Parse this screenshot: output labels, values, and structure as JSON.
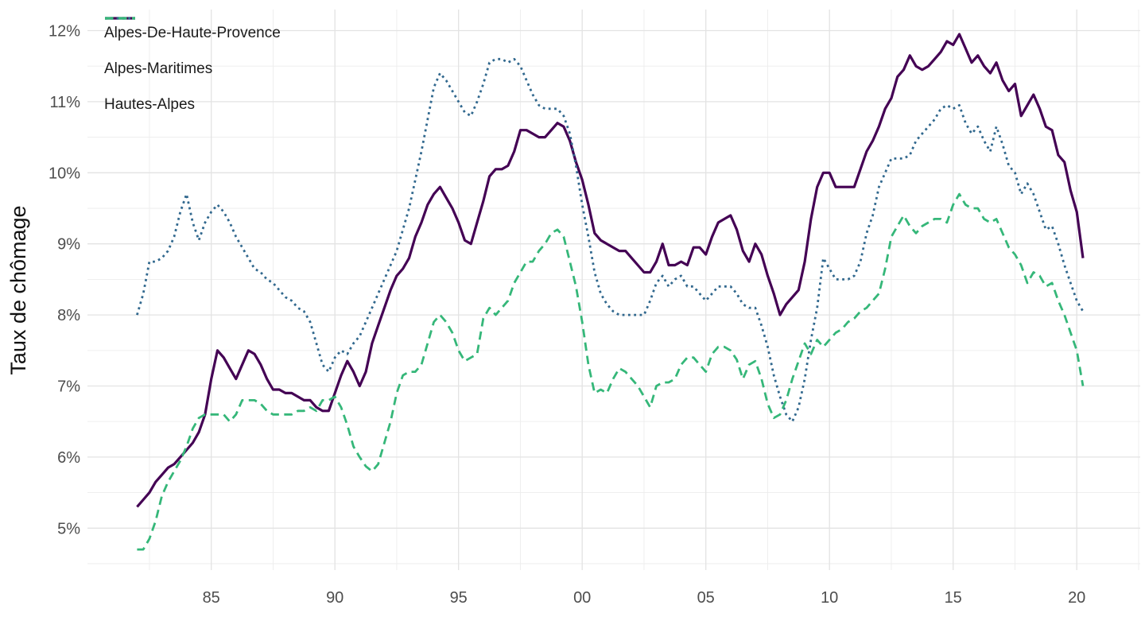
{
  "figure": {
    "y_axis_title": "Taux de chômage",
    "tick_label_color": "#4d4d4d",
    "axis_title_color": "#111111",
    "grid_major_color": "#e3e3e3",
    "grid_minor_color": "#ededed",
    "background": "#ffffff"
  },
  "chart_data": {
    "type": "line",
    "title": "",
    "xlabel": "",
    "ylabel": "Taux de chômage",
    "x_unit": "year (quarterly unemployment rate, %)",
    "x_start": 1982.0,
    "x_step": 0.25,
    "x_end": 2020.25,
    "xlim": [
      1980.0,
      2022.6
    ],
    "ylim": [
      4.4,
      12.3
    ],
    "grid": true,
    "legend_position": "top-left-inside",
    "x_tick_years": [
      1985,
      1990,
      1995,
      2000,
      2005,
      2010,
      2015,
      2020
    ],
    "x_tick_labels": [
      "85",
      "90",
      "95",
      "00",
      "05",
      "10",
      "15",
      "20"
    ],
    "y_ticks": [
      5,
      6,
      7,
      8,
      9,
      10,
      11,
      12
    ],
    "y_tick_labels": [
      "5%",
      "6%",
      "7%",
      "8%",
      "9%",
      "10%",
      "11%",
      "12%"
    ],
    "series": [
      {
        "name": "Alpes-De-Haute-Provence",
        "color": "#440154",
        "linestyle": "solid",
        "values": [
          5.3,
          5.4,
          5.5,
          5.65,
          5.75,
          5.85,
          5.9,
          6.0,
          6.1,
          6.2,
          6.35,
          6.6,
          7.1,
          7.5,
          7.4,
          7.25,
          7.1,
          7.3,
          7.5,
          7.45,
          7.3,
          7.1,
          6.95,
          6.95,
          6.9,
          6.9,
          6.85,
          6.8,
          6.8,
          6.7,
          6.65,
          6.65,
          6.9,
          7.15,
          7.35,
          7.2,
          7.0,
          7.2,
          7.6,
          7.85,
          8.1,
          8.35,
          8.55,
          8.65,
          8.8,
          9.1,
          9.3,
          9.55,
          9.7,
          9.8,
          9.65,
          9.5,
          9.3,
          9.05,
          9.0,
          9.3,
          9.6,
          9.95,
          10.05,
          10.05,
          10.1,
          10.3,
          10.6,
          10.6,
          10.55,
          10.5,
          10.5,
          10.6,
          10.7,
          10.65,
          10.45,
          10.15,
          9.9,
          9.55,
          9.15,
          9.05,
          9.0,
          8.95,
          8.9,
          8.9,
          8.8,
          8.7,
          8.6,
          8.6,
          8.75,
          9.0,
          8.7,
          8.7,
          8.75,
          8.7,
          8.95,
          8.95,
          8.85,
          9.1,
          9.3,
          9.35,
          9.4,
          9.2,
          8.9,
          8.75,
          9.0,
          8.85,
          8.55,
          8.3,
          8.0,
          8.15,
          8.25,
          8.35,
          8.75,
          9.35,
          9.8,
          10.0,
          10.0,
          9.8,
          9.8,
          9.8,
          9.8,
          10.05,
          10.3,
          10.45,
          10.65,
          10.9,
          11.05,
          11.35,
          11.45,
          11.65,
          11.5,
          11.45,
          11.5,
          11.6,
          11.7,
          11.85,
          11.8,
          11.95,
          11.75,
          11.55,
          11.65,
          11.5,
          11.4,
          11.55,
          11.3,
          11.15,
          11.25,
          10.8,
          10.95,
          11.1,
          10.9,
          10.65,
          10.6,
          10.25,
          10.15,
          9.75,
          9.45,
          8.8
        ]
      },
      {
        "name": "Alpes-Maritimes",
        "color": "#31688e",
        "linestyle": "dotted",
        "values": [
          8.0,
          8.3,
          8.75,
          8.75,
          8.8,
          8.9,
          9.1,
          9.45,
          9.7,
          9.3,
          9.05,
          9.3,
          9.45,
          9.55,
          9.45,
          9.3,
          9.1,
          8.95,
          8.8,
          8.65,
          8.6,
          8.5,
          8.45,
          8.35,
          8.25,
          8.2,
          8.1,
          8.05,
          7.9,
          7.6,
          7.3,
          7.2,
          7.4,
          7.5,
          7.45,
          7.6,
          7.7,
          7.9,
          8.1,
          8.3,
          8.5,
          8.7,
          8.9,
          9.2,
          9.5,
          9.9,
          10.3,
          10.75,
          11.2,
          11.4,
          11.3,
          11.15,
          11.0,
          10.85,
          10.8,
          11.0,
          11.25,
          11.55,
          11.6,
          11.6,
          11.55,
          11.6,
          11.5,
          11.3,
          11.1,
          10.95,
          10.9,
          10.9,
          10.9,
          10.8,
          10.55,
          10.1,
          9.55,
          9.1,
          8.6,
          8.3,
          8.15,
          8.05,
          8.0,
          8.0,
          8.0,
          8.0,
          8.0,
          8.2,
          8.45,
          8.55,
          8.4,
          8.5,
          8.55,
          8.4,
          8.4,
          8.3,
          8.2,
          8.3,
          8.4,
          8.4,
          8.4,
          8.3,
          8.15,
          8.1,
          8.1,
          7.85,
          7.55,
          7.15,
          6.85,
          6.6,
          6.5,
          6.7,
          7.1,
          7.65,
          8.1,
          8.8,
          8.65,
          8.5,
          8.5,
          8.5,
          8.55,
          8.75,
          9.15,
          9.4,
          9.8,
          10.0,
          10.2,
          10.2,
          10.2,
          10.25,
          10.45,
          10.55,
          10.65,
          10.75,
          10.9,
          10.95,
          10.9,
          10.95,
          10.7,
          10.55,
          10.65,
          10.45,
          10.3,
          10.65,
          10.4,
          10.1,
          10.0,
          9.7,
          9.85,
          9.7,
          9.45,
          9.2,
          9.25,
          9.0,
          8.7,
          8.45,
          8.2,
          8.05
        ]
      },
      {
        "name": "Hautes-Alpes",
        "color": "#35b779",
        "linestyle": "dashed",
        "values": [
          4.7,
          4.7,
          4.85,
          5.1,
          5.45,
          5.65,
          5.8,
          5.95,
          6.15,
          6.4,
          6.55,
          6.6,
          6.6,
          6.6,
          6.6,
          6.5,
          6.6,
          6.8,
          6.8,
          6.8,
          6.75,
          6.65,
          6.6,
          6.6,
          6.6,
          6.6,
          6.65,
          6.65,
          6.7,
          6.65,
          6.8,
          6.8,
          6.85,
          6.7,
          6.45,
          6.15,
          6.0,
          5.87,
          5.8,
          5.9,
          6.2,
          6.5,
          6.9,
          7.15,
          7.2,
          7.2,
          7.3,
          7.6,
          7.9,
          8.0,
          7.9,
          7.75,
          7.5,
          7.35,
          7.4,
          7.45,
          7.95,
          8.1,
          8.0,
          8.1,
          8.2,
          8.45,
          8.6,
          8.75,
          8.75,
          8.9,
          9.0,
          9.15,
          9.2,
          9.1,
          8.75,
          8.4,
          7.9,
          7.3,
          6.9,
          6.95,
          6.9,
          7.1,
          7.25,
          7.2,
          7.1,
          7.0,
          6.85,
          6.7,
          7.0,
          7.05,
          7.05,
          7.1,
          7.3,
          7.4,
          7.4,
          7.3,
          7.2,
          7.45,
          7.55,
          7.55,
          7.5,
          7.37,
          7.1,
          7.3,
          7.35,
          7.1,
          6.75,
          6.55,
          6.6,
          6.8,
          7.1,
          7.35,
          7.6,
          7.45,
          7.65,
          7.55,
          7.65,
          7.75,
          7.8,
          7.9,
          7.95,
          8.05,
          8.1,
          8.2,
          8.3,
          8.65,
          9.1,
          9.25,
          9.4,
          9.25,
          9.15,
          9.25,
          9.3,
          9.35,
          9.35,
          9.3,
          9.55,
          9.7,
          9.55,
          9.5,
          9.5,
          9.35,
          9.3,
          9.35,
          9.15,
          8.95,
          8.85,
          8.7,
          8.45,
          8.6,
          8.55,
          8.4,
          8.45,
          8.2,
          8.0,
          7.75,
          7.5,
          7.0
        ]
      }
    ]
  }
}
